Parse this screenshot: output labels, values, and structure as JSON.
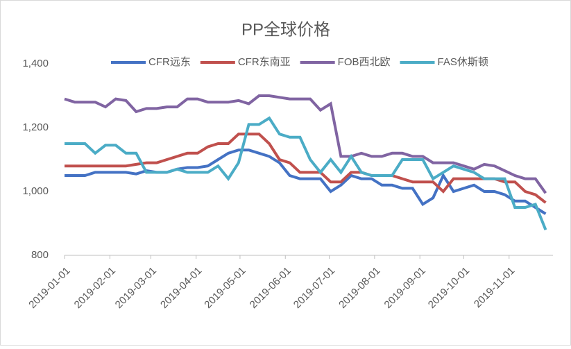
{
  "chart_data": {
    "type": "line",
    "title": "PP全球价格",
    "x": [
      "2019-01-01",
      "2019-01-08",
      "2019-01-15",
      "2019-01-22",
      "2019-01-29",
      "2019-02-05",
      "2019-02-12",
      "2019-02-19",
      "2019-02-26",
      "2019-03-05",
      "2019-03-12",
      "2019-03-19",
      "2019-03-26",
      "2019-04-02",
      "2019-04-09",
      "2019-04-16",
      "2019-04-23",
      "2019-04-30",
      "2019-05-07",
      "2019-05-14",
      "2019-05-21",
      "2019-05-28",
      "2019-06-04",
      "2019-06-11",
      "2019-06-18",
      "2019-06-25",
      "2019-07-02",
      "2019-07-09",
      "2019-07-16",
      "2019-07-23",
      "2019-07-30",
      "2019-08-06",
      "2019-08-13",
      "2019-08-20",
      "2019-08-27",
      "2019-09-03",
      "2019-09-10",
      "2019-09-17",
      "2019-09-24",
      "2019-10-01",
      "2019-10-08",
      "2019-10-15",
      "2019-10-22",
      "2019-10-29",
      "2019-11-05",
      "2019-11-12",
      "2019-11-19",
      "2019-11-26"
    ],
    "series": [
      {
        "name": "CFR远东",
        "color": "#4472c4",
        "values": [
          1050,
          1050,
          1050,
          1060,
          1060,
          1060,
          1060,
          1055,
          1065,
          1060,
          1060,
          1070,
          1075,
          1075,
          1080,
          1100,
          1120,
          1130,
          1130,
          1120,
          1110,
          1090,
          1050,
          1040,
          1040,
          1040,
          1000,
          1020,
          1050,
          1040,
          1040,
          1020,
          1020,
          1010,
          1010,
          960,
          980,
          1050,
          1000,
          1010,
          1020,
          1000,
          1000,
          990,
          970,
          970,
          950,
          930
        ]
      },
      {
        "name": "CFR东南亚",
        "color": "#c0504d",
        "values": [
          1080,
          1080,
          1080,
          1080,
          1080,
          1080,
          1080,
          1085,
          1090,
          1090,
          1100,
          1110,
          1120,
          1120,
          1140,
          1150,
          1150,
          1180,
          1180,
          1180,
          1150,
          1100,
          1090,
          1060,
          1060,
          1060,
          1030,
          1030,
          1060,
          1060,
          1050,
          1050,
          1050,
          1040,
          1030,
          1030,
          1030,
          1000,
          1040,
          1040,
          1040,
          1040,
          1040,
          1030,
          1030,
          1000,
          990,
          965
        ]
      },
      {
        "name": "FOB西北欧",
        "color": "#8064a2",
        "values": [
          1290,
          1280,
          1280,
          1280,
          1265,
          1290,
          1285,
          1250,
          1260,
          1260,
          1265,
          1265,
          1290,
          1290,
          1280,
          1280,
          1280,
          1285,
          1275,
          1300,
          1300,
          1295,
          1290,
          1290,
          1290,
          1255,
          1275,
          1110,
          1110,
          1120,
          1110,
          1110,
          1120,
          1120,
          1110,
          1110,
          1090,
          1090,
          1090,
          1080,
          1070,
          1085,
          1080,
          1065,
          1050,
          1040,
          1040,
          995
        ]
      },
      {
        "name": "FAS休斯顿",
        "color": "#4bacc6",
        "values": [
          1150,
          1150,
          1150,
          1120,
          1145,
          1145,
          1120,
          1120,
          1060,
          1060,
          1060,
          1070,
          1060,
          1060,
          1060,
          1080,
          1040,
          1090,
          1210,
          1210,
          1230,
          1180,
          1170,
          1170,
          1100,
          1060,
          1100,
          1060,
          1110,
          1060,
          1050,
          1050,
          1050,
          1100,
          1100,
          1100,
          1040,
          1060,
          1080,
          1070,
          1060,
          1040,
          1040,
          1040,
          950,
          950,
          960,
          880
        ]
      }
    ],
    "xlim": [
      "2019-01-01",
      "2019-12-01"
    ],
    "xticks": [
      "2019-01-01",
      "2019-02-01",
      "2019-03-01",
      "2019-04-01",
      "2019-05-01",
      "2019-06-01",
      "2019-07-01",
      "2019-08-01",
      "2019-09-01",
      "2019-10-01",
      "2019-11-01"
    ],
    "ylim": [
      800,
      1400
    ],
    "yticks": [
      {
        "value": 800,
        "label": "800"
      },
      {
        "value": 1000,
        "label": "1,000"
      },
      {
        "value": 1200,
        "label": "1,200"
      },
      {
        "value": 1400,
        "label": "1,400"
      }
    ],
    "legend": "top"
  }
}
